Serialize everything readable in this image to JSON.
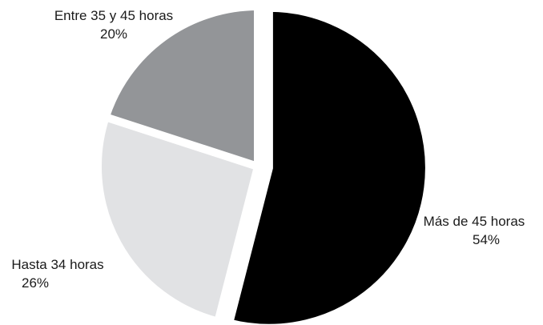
{
  "chart_data": {
    "type": "pie",
    "title": "",
    "series": [
      {
        "values": [
          {
            "label": "Más de 45 horas",
            "value": 54,
            "value_label": "54%",
            "color": "#000000",
            "exploded": true
          },
          {
            "label": "Hasta 34 horas",
            "value": 26,
            "value_label": "26%",
            "color": "#e1e2e4",
            "exploded": false
          },
          {
            "label": "Entre 35 y 45 horas",
            "value": 20,
            "value_label": "20%",
            "color": "#939598",
            "exploded": false
          }
        ]
      }
    ],
    "start_angle_deg": 0,
    "direction": "clockwise",
    "legend": "none",
    "label_color": "#1a1a1a"
  }
}
